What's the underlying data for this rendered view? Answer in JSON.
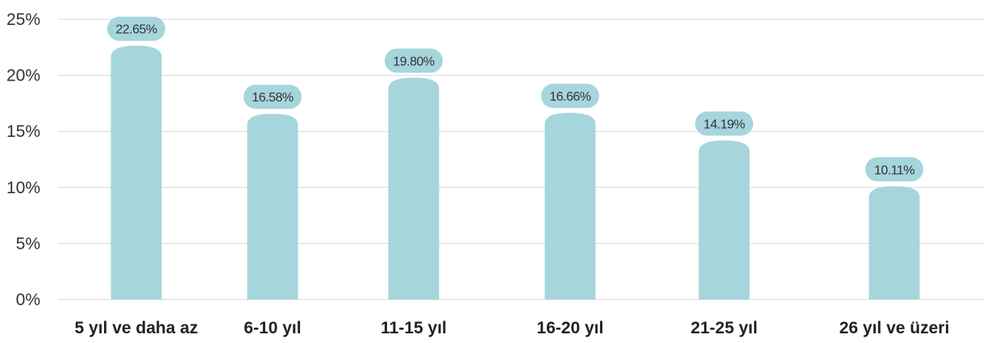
{
  "colors": {
    "bar": "#a6d5dc",
    "grid": "#d9d9d9",
    "text": "#333333"
  },
  "chart_data": {
    "type": "bar",
    "categories": [
      "5 yıl ve daha az",
      "6-10 yıl",
      "11-15 yıl",
      "16-20 yıl",
      "21-25 yıl",
      "26 yıl ve üzeri"
    ],
    "values": [
      22.65,
      16.58,
      19.8,
      16.66,
      14.19,
      10.11
    ],
    "data_labels": [
      "22.65%",
      "16.58%",
      "19.80%",
      "16.66%",
      "14.19%",
      "10.11%"
    ],
    "y_ticks": [
      0,
      5,
      10,
      15,
      20,
      25
    ],
    "y_tick_labels": [
      "0%",
      "5%",
      "10%",
      "15%",
      "20%",
      "25%"
    ],
    "ylim": [
      0,
      25
    ],
    "grid": true,
    "legend": "none"
  }
}
